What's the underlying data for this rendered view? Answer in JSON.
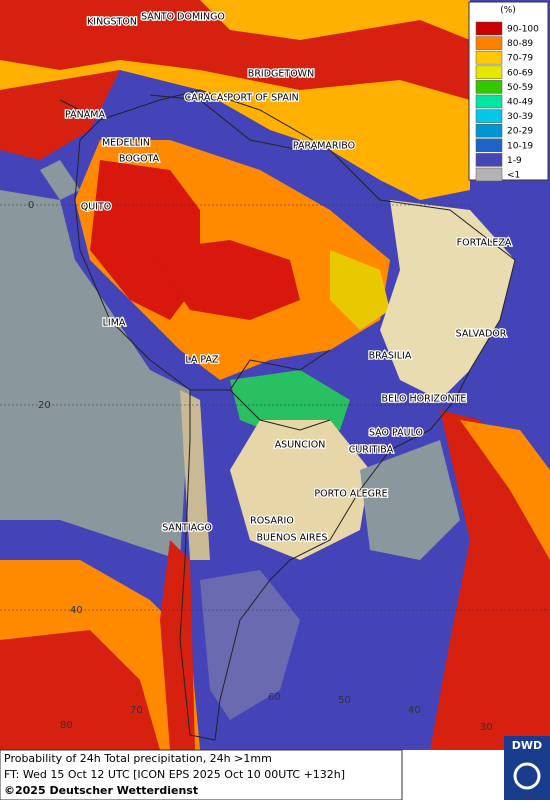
{
  "legend": {
    "unit": "(%)",
    "entries": [
      {
        "label": "90-100",
        "color": "#c80000"
      },
      {
        "label": "80-89",
        "color": "#ff8000"
      },
      {
        "label": "70-79",
        "color": "#ffc800"
      },
      {
        "label": "60-69",
        "color": "#e6e600"
      },
      {
        "label": "50-59",
        "color": "#32c800"
      },
      {
        "label": "40-49",
        "color": "#00e6a0"
      },
      {
        "label": "30-39",
        "color": "#00c8e6"
      },
      {
        "label": "20-29",
        "color": "#0096d2"
      },
      {
        "label": "10-19",
        "color": "#1e64c8"
      },
      {
        "label": "1-9",
        "color": "#4646b4"
      },
      {
        "label": "<1",
        "color": "#b4b4b4"
      }
    ]
  },
  "cities": [
    "KINGSTON",
    "SANTO DOMINGO",
    "BRIDGETOWN",
    "CARACAS",
    "PORT OF SPAIN",
    "PANAMA",
    "MEDELLIN",
    "BOGOTA",
    "PARAMARIBO",
    "QUITO",
    "FORTALEZA",
    "LIMA",
    "SALVADOR",
    "BRASILIA",
    "LA PAZ",
    "BELO HORIZONTE",
    "SAO PAULO",
    "ASUNCION",
    "CURITIBA",
    "PORTO ALEGRE",
    "SANTIAGO",
    "ROSARIO",
    "BUENOS AIRES"
  ],
  "grid_labels": [
    "0",
    "20",
    "40",
    "80",
    "70",
    "60",
    "50",
    "40",
    "30"
  ],
  "footer": {
    "line1": "Probability of 24h Total precipitation, 24h >1mm",
    "line2": "FT: Wed 15 Oct 12 UTC [ICON EPS 2025 Oct 10 00UTC +132h]",
    "line3": "©2025 Deutscher Wetterdienst"
  },
  "logo": "DWD"
}
